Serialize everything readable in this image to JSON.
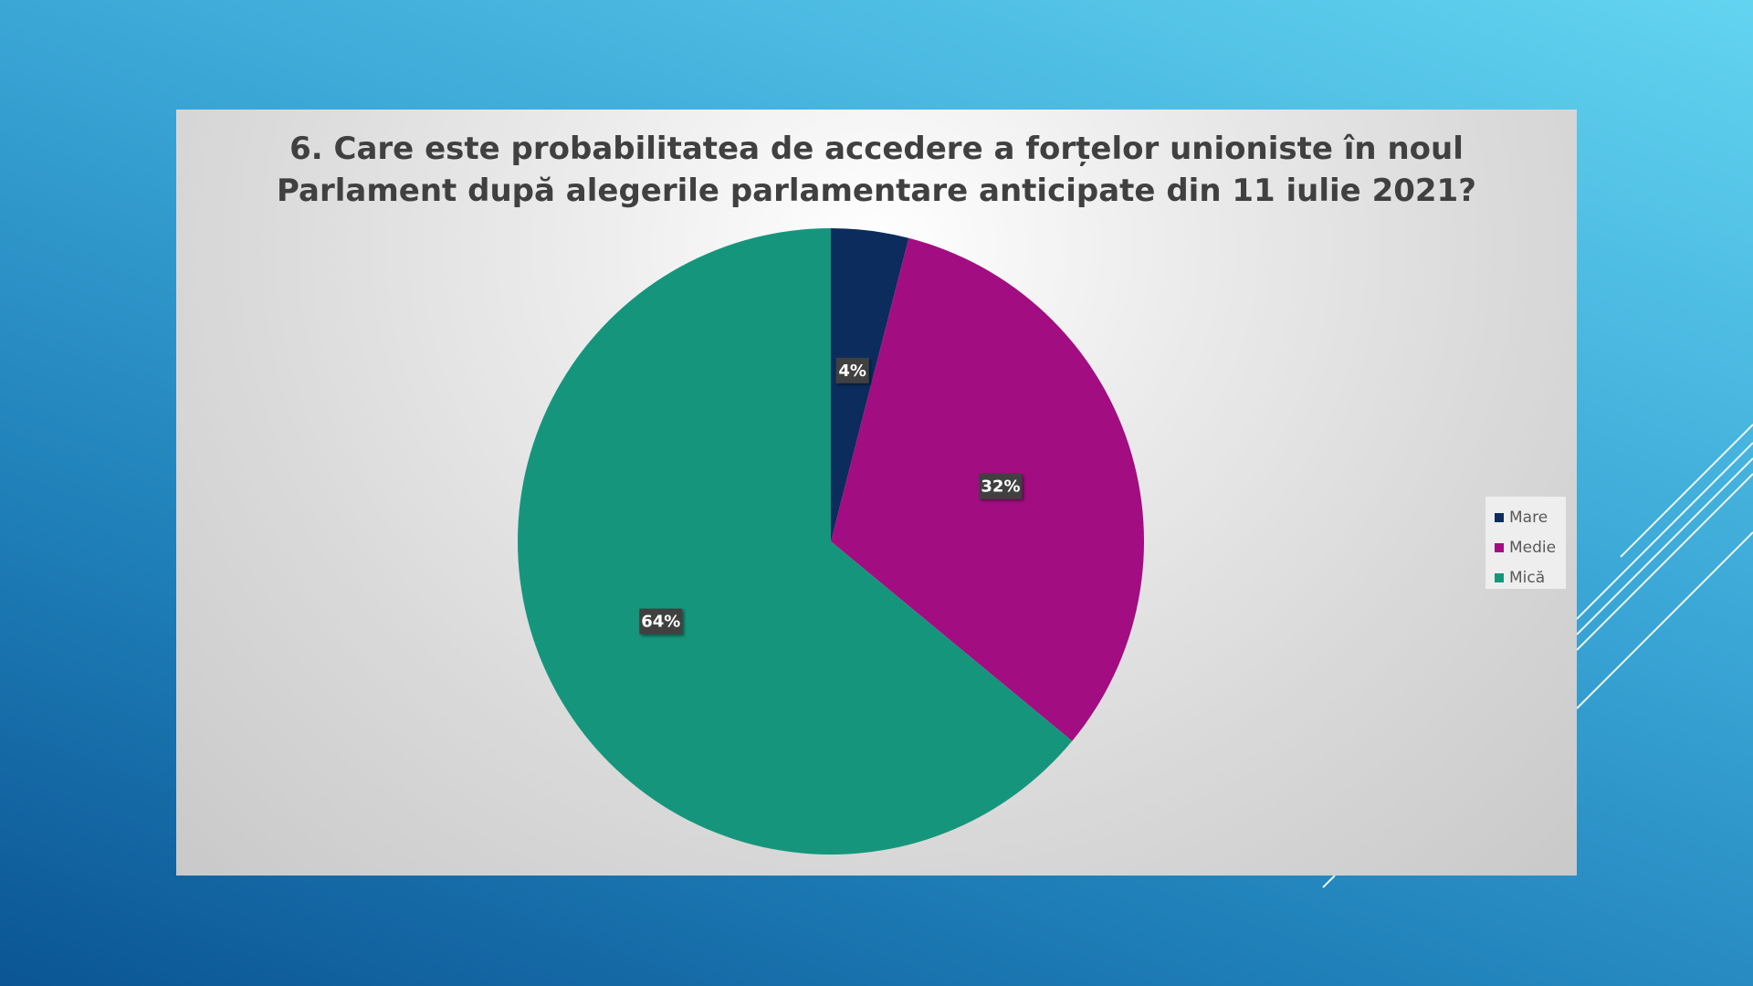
{
  "chart_data": {
    "type": "pie",
    "title_lines": [
      "6. Care este probabilitatea de accedere a forțelor unioniste în noul",
      "Parlament după alegerile parlamentare anticipate din 11 iulie 2021?"
    ],
    "categories": [
      "Mare",
      "Medie",
      "Mică"
    ],
    "values": [
      4,
      32,
      64
    ],
    "data_labels": [
      "4%",
      "32%",
      "64%"
    ],
    "colors": [
      "#0b2c5c",
      "#a30d82",
      "#15967c"
    ],
    "start_angle": "12 o'clock",
    "direction": "clockwise",
    "legend_position": "right"
  }
}
